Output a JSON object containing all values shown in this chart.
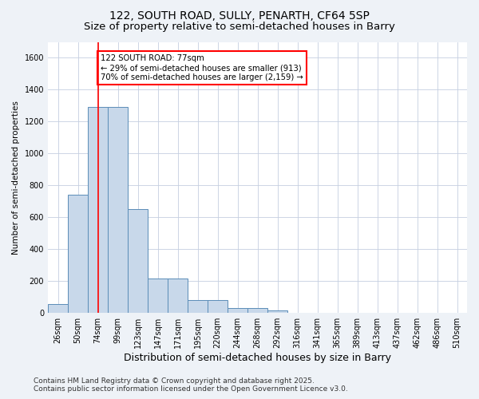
{
  "title1": "122, SOUTH ROAD, SULLY, PENARTH, CF64 5SP",
  "title2": "Size of property relative to semi-detached houses in Barry",
  "xlabel": "Distribution of semi-detached houses by size in Barry",
  "ylabel": "Number of semi-detached properties",
  "bar_color": "#c8d8ea",
  "bar_edge_color": "#5b8db8",
  "categories": [
    "26sqm",
    "50sqm",
    "74sqm",
    "99sqm",
    "123sqm",
    "147sqm",
    "171sqm",
    "195sqm",
    "220sqm",
    "244sqm",
    "268sqm",
    "292sqm",
    "316sqm",
    "341sqm",
    "365sqm",
    "389sqm",
    "413sqm",
    "437sqm",
    "462sqm",
    "486sqm",
    "510sqm"
  ],
  "values": [
    55,
    740,
    1290,
    1290,
    650,
    215,
    215,
    80,
    80,
    30,
    30,
    15,
    0,
    0,
    0,
    0,
    0,
    0,
    0,
    0,
    0
  ],
  "ylim": [
    0,
    1700
  ],
  "yticks": [
    0,
    200,
    400,
    600,
    800,
    1000,
    1200,
    1400,
    1600
  ],
  "annotation_text": "122 SOUTH ROAD: 77sqm\n← 29% of semi-detached houses are smaller (913)\n70% of semi-detached houses are larger (2,159) →",
  "annotation_box_color": "white",
  "annotation_box_edge_color": "red",
  "vline_color": "red",
  "vline_x": 2.0,
  "footer1": "Contains HM Land Registry data © Crown copyright and database right 2025.",
  "footer2": "Contains public sector information licensed under the Open Government Licence v3.0.",
  "background_color": "#eef2f7",
  "plot_background_color": "white",
  "grid_color": "#c5cfe0",
  "title_fontsize": 10,
  "subtitle_fontsize": 9.5,
  "tick_fontsize": 7,
  "footer_fontsize": 6.5,
  "ylabel_fontsize": 7.5,
  "xlabel_fontsize": 9
}
